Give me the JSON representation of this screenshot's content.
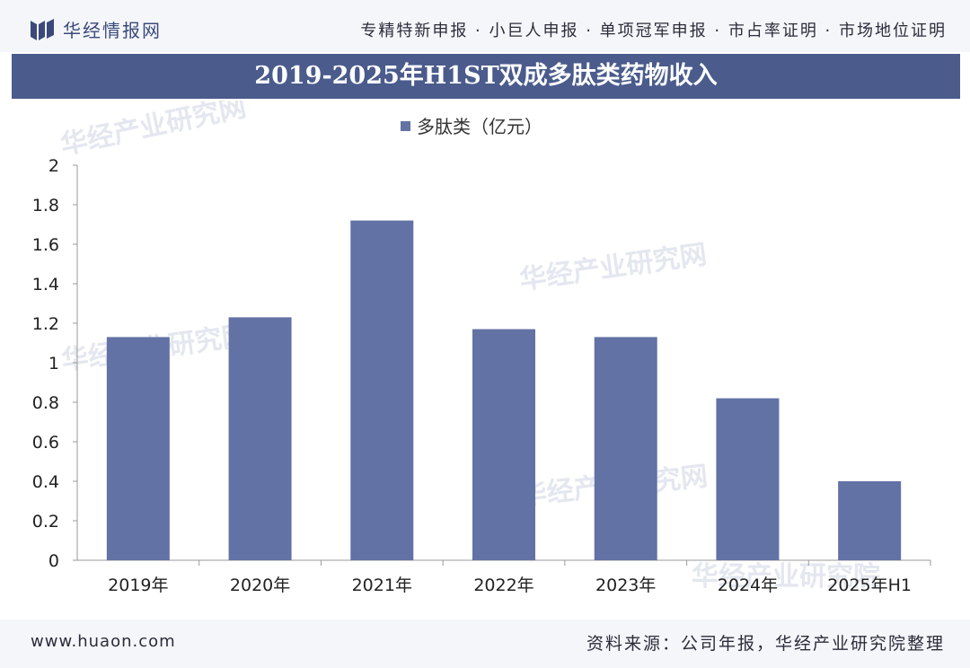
{
  "header": {
    "logo_text": "华经情报网",
    "services": "专精特新申报 · 小巨人申报 · 单项冠军申报 · 市占率证明 · 市场地位证明"
  },
  "colors": {
    "bar": "#6372a4",
    "title_bar": "#4a5b8c"
  },
  "chart_data": {
    "type": "bar",
    "title": "2019-2025年H1ST双成多肽类药物收入",
    "categories": [
      "2019年",
      "2020年",
      "2021年",
      "2022年",
      "2023年",
      "2024年",
      "2025年H1"
    ],
    "series": [
      {
        "name": "多肽类（亿元）",
        "values": [
          1.13,
          1.23,
          1.72,
          1.17,
          1.13,
          0.82,
          0.4
        ]
      }
    ],
    "ylim": [
      0,
      2
    ],
    "yticks": [
      "0",
      "0.2",
      "0.4",
      "0.6",
      "0.8",
      "1",
      "1.2",
      "1.4",
      "1.6",
      "1.8",
      "2"
    ],
    "legend_position": "top-center",
    "grid": false
  },
  "watermarks": [
    "华经产业研究网",
    "华经产业研究网",
    "华经产业研究网",
    "华经产业研究网",
    "华经产业研究院"
  ],
  "footer": {
    "site": "www.huaon.com",
    "source": "资料来源：公司年报，华经产业研究院整理"
  }
}
